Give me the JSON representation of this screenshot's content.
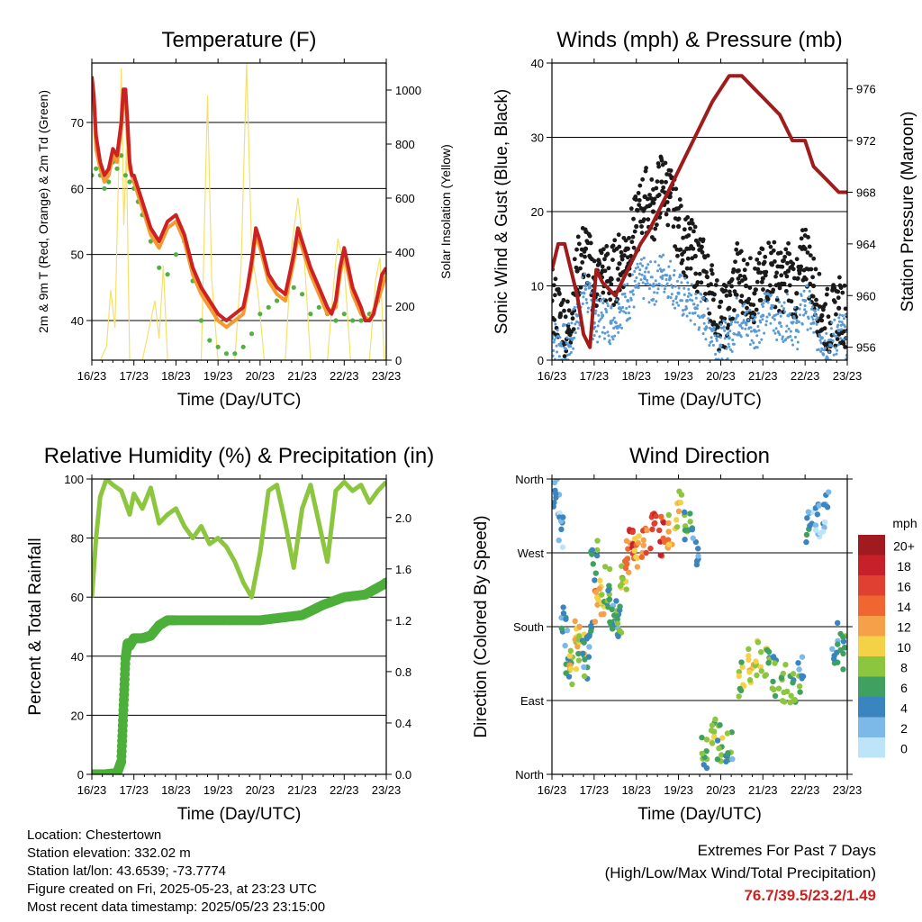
{
  "info": {
    "location": "Location: Chestertown",
    "elevation": "Station elevation: 332.02 m",
    "latlon": "Station lat/lon: 43.6539; -73.7774",
    "created": "Figure created on Fri, 2025-05-23, at 23:23 UTC",
    "recent": "Most recent data timestamp: 2025/05/23 23:15:00"
  },
  "extremes": {
    "title": "Extremes For Past 7 Days",
    "subtitle": "(High/Low/Max Wind/Total Precipitation)",
    "values": "76.7/39.5/23.2/1.49",
    "color": "#cc2222"
  },
  "chart_data": [
    {
      "type": "line",
      "title": "Temperature (F)",
      "xlabel": "Time (Day/UTC)",
      "ylabel": "2m & 9m T (Red, Orange) & 2m Td (Green)",
      "y2label": "Solar Insolation (Yellow)",
      "x_ticks": [
        "16/23",
        "17/23",
        "18/23",
        "19/23",
        "20/23",
        "21/23",
        "22/23",
        "23/23"
      ],
      "xlim": [
        0,
        7
      ],
      "ylim": [
        34,
        79
      ],
      "y_ticks": [
        40,
        50,
        60,
        70
      ],
      "y2lim": [
        0,
        1100
      ],
      "y2_ticks": [
        0,
        200,
        400,
        600,
        800,
        1000
      ],
      "grid": true,
      "series": [
        {
          "color": "#cc2222",
          "axis": "left",
          "x": [
            0,
            0.05,
            0.1,
            0.2,
            0.3,
            0.4,
            0.5,
            0.6,
            0.7,
            0.75,
            0.8,
            0.85,
            0.9,
            0.95,
            1.0,
            1.2,
            1.4,
            1.6,
            1.8,
            2.0,
            2.2,
            2.4,
            2.6,
            2.8,
            2.9,
            3.0,
            3.2,
            3.4,
            3.6,
            3.7,
            3.8,
            3.9,
            4.0,
            4.2,
            4.4,
            4.6,
            4.7,
            4.8,
            4.9,
            5.0,
            5.2,
            5.4,
            5.6,
            5.7,
            5.8,
            5.9,
            6.0,
            6.2,
            6.4,
            6.5,
            6.6,
            6.7,
            6.8,
            6.9,
            7.0
          ],
          "values": [
            77,
            74,
            68,
            64,
            62,
            63,
            66,
            65,
            70,
            75,
            75,
            70,
            64,
            62,
            62,
            58,
            54,
            52,
            55,
            56,
            53,
            48,
            45,
            43,
            42,
            41,
            40,
            41,
            42,
            45,
            49,
            54,
            52,
            47,
            45,
            44,
            47,
            50,
            54,
            52,
            48,
            45,
            42,
            41,
            43,
            48,
            51,
            45,
            42,
            40,
            40,
            41,
            44,
            47,
            48
          ]
        },
        {
          "color": "#f59a30",
          "axis": "left",
          "x": [
            0,
            0.05,
            0.1,
            0.2,
            0.3,
            0.4,
            0.5,
            0.6,
            0.7,
            0.75,
            0.8,
            0.85,
            0.9,
            1.0,
            1.2,
            1.4,
            1.6,
            1.8,
            2.0,
            2.2,
            2.4,
            2.6,
            2.8,
            3.0,
            3.2,
            3.4,
            3.6,
            3.8,
            3.9,
            4.0,
            4.2,
            4.4,
            4.6,
            4.8,
            4.9,
            5.0,
            5.2,
            5.4,
            5.6,
            5.8,
            5.9,
            6.0,
            6.2,
            6.4,
            6.6,
            6.8,
            7.0
          ],
          "values": [
            76,
            73,
            66,
            63,
            61,
            62,
            65,
            64,
            69,
            74,
            74,
            68,
            63,
            61,
            57,
            53,
            51,
            54,
            55,
            52,
            47,
            44,
            42,
            40,
            39,
            40,
            41,
            48,
            53,
            51,
            46,
            44,
            43,
            49,
            53,
            51,
            47,
            44,
            41,
            42,
            47,
            50,
            44,
            41,
            40,
            43,
            47
          ]
        },
        {
          "color": "#52b043",
          "axis": "left",
          "x": [
            0,
            0.1,
            0.2,
            0.3,
            0.4,
            0.5,
            0.6,
            0.7,
            0.8,
            0.9,
            1.0,
            1.1,
            1.2,
            1.4,
            1.6,
            1.8,
            2.0,
            2.2,
            2.4,
            2.6,
            2.8,
            3.0,
            3.2,
            3.4,
            3.6,
            3.8,
            4.0,
            4.2,
            4.4,
            4.6,
            4.8,
            5.0,
            5.2,
            5.4,
            5.6,
            5.8,
            6.0,
            6.2,
            6.4,
            6.6,
            6.8,
            7.0
          ],
          "values": [
            62,
            63,
            62,
            60,
            61,
            64,
            63,
            65,
            62,
            61,
            60,
            58,
            56,
            52,
            48,
            47,
            50,
            52,
            46,
            40,
            37,
            36,
            35,
            35,
            36,
            38,
            41,
            42,
            43,
            44,
            45,
            44,
            41,
            42,
            41,
            40,
            41,
            40,
            40,
            41,
            43,
            47
          ]
        },
        {
          "color": "#f5e06a",
          "axis": "right",
          "x": [
            0.2,
            0.35,
            0.45,
            0.55,
            0.62,
            0.7,
            0.76,
            0.82,
            0.9,
            1.2,
            1.5,
            1.6,
            1.7,
            1.8,
            2.2,
            2.6,
            2.75,
            2.85,
            3.0,
            3.4,
            3.55,
            3.68,
            3.8,
            3.95,
            4.1,
            4.6,
            4.75,
            4.9,
            5.05,
            5.2,
            5.6,
            5.75,
            5.85,
            6.0,
            6.15,
            6.6,
            6.75,
            6.85,
            6.95
          ],
          "values": [
            0,
            50,
            260,
            120,
            600,
            1080,
            500,
            780,
            0,
            0,
            220,
            80,
            350,
            0,
            0,
            0,
            980,
            300,
            0,
            0,
            350,
            1100,
            400,
            250,
            0,
            0,
            420,
            600,
            380,
            0,
            0,
            280,
            450,
            350,
            0,
            0,
            300,
            380,
            0
          ]
        }
      ]
    },
    {
      "type": "scatter",
      "title": "Winds (mph) & Pressure (mb)",
      "xlabel": "Time (Day/UTC)",
      "ylabel": "Sonic Wind & Gust (Blue, Black)",
      "y2label": "Station Pressure (Maroon)",
      "x_ticks": [
        "16/23",
        "17/23",
        "18/23",
        "19/23",
        "20/23",
        "21/23",
        "22/23",
        "23/23"
      ],
      "xlim": [
        0,
        7
      ],
      "ylim": [
        0,
        40
      ],
      "y_ticks": [
        0,
        10,
        20,
        30,
        40
      ],
      "y2lim": [
        955,
        978
      ],
      "y2_ticks": [
        956,
        960,
        964,
        968,
        972,
        976
      ],
      "grid": true,
      "series": [
        {
          "color": "#1a1a1a",
          "marker": "dot",
          "x": [
            0,
            0.2,
            0.4,
            0.6,
            0.8,
            1.0,
            1.2,
            1.4,
            1.6,
            1.8,
            2.0,
            2.2,
            2.4,
            2.6,
            2.8,
            3.0,
            3.2,
            3.4,
            3.6,
            3.8,
            4.0,
            4.2,
            4.4,
            4.6,
            4.8,
            5.0,
            5.2,
            5.4,
            5.6,
            5.8,
            6.0,
            6.2,
            6.4,
            6.6,
            6.8,
            7.0
          ],
          "values": [
            8,
            6,
            4,
            12,
            15,
            10,
            12,
            11,
            13,
            15,
            18,
            22,
            20,
            24,
            22,
            18,
            15,
            14,
            12,
            9,
            5,
            7,
            12,
            10,
            9,
            11,
            13,
            10,
            12,
            9,
            15,
            10,
            6,
            5,
            7,
            6
          ]
        },
        {
          "color": "#5b9bd5",
          "marker": "dot",
          "x": [
            0,
            0.2,
            0.4,
            0.6,
            0.8,
            1.0,
            1.2,
            1.4,
            1.6,
            1.8,
            2.0,
            2.2,
            2.4,
            2.6,
            2.8,
            3.0,
            3.2,
            3.4,
            3.6,
            3.8,
            4.0,
            4.2,
            4.4,
            4.6,
            4.8,
            5.0,
            5.2,
            5.4,
            5.6,
            5.8,
            6.0,
            6.2,
            6.4,
            6.6,
            6.8,
            7.0
          ],
          "values": [
            3,
            2,
            2,
            6,
            10,
            5,
            6,
            5,
            7,
            8,
            10,
            11,
            10,
            12,
            11,
            9,
            8,
            7,
            6,
            4,
            2,
            3,
            6,
            5,
            4,
            6,
            7,
            5,
            6,
            4,
            8,
            5,
            3,
            2,
            4,
            3
          ]
        },
        {
          "color": "#a01c1c",
          "marker": "line",
          "axis": "right",
          "x": [
            0,
            0.15,
            0.3,
            0.45,
            0.6,
            0.75,
            0.9,
            1.05,
            1.2,
            1.5,
            1.8,
            2.1,
            2.3,
            2.6,
            2.9,
            3.2,
            3.5,
            3.8,
            4.0,
            4.2,
            4.5,
            4.8,
            5.1,
            5.4,
            5.7,
            6.0,
            6.2,
            6.5,
            6.8,
            7.0
          ],
          "values": [
            962,
            964,
            964,
            962,
            960,
            957,
            956,
            962,
            961,
            960,
            962,
            964,
            965,
            967,
            969,
            971,
            973,
            975,
            976,
            977,
            977,
            976,
            975,
            974,
            972,
            972,
            970,
            969,
            968,
            968
          ]
        }
      ]
    },
    {
      "type": "line",
      "title": "Relative Humidity (%) & Precipitation (in)",
      "xlabel": "Time (Day/UTC)",
      "ylabel": "Percent & Total Rainfall",
      "x_ticks": [
        "16/23",
        "17/23",
        "18/23",
        "19/23",
        "20/23",
        "21/23",
        "22/23",
        "23/23"
      ],
      "xlim": [
        0,
        7
      ],
      "ylim": [
        0,
        100
      ],
      "y_ticks": [
        0,
        20,
        40,
        60,
        80,
        100
      ],
      "y2lim": [
        0,
        2.3
      ],
      "y2_ticks": [
        "0.0",
        "0.4",
        "0.8",
        "1.2",
        "1.6",
        "2.0"
      ],
      "grid": true,
      "series": [
        {
          "color": "#8cc63f",
          "axis": "left",
          "x": [
            0,
            0.1,
            0.2,
            0.35,
            0.5,
            0.7,
            0.8,
            0.9,
            1.0,
            1.2,
            1.4,
            1.6,
            1.8,
            2.0,
            2.2,
            2.4,
            2.6,
            2.8,
            3.0,
            3.2,
            3.4,
            3.6,
            3.8,
            4.0,
            4.2,
            4.4,
            4.6,
            4.8,
            5.0,
            5.2,
            5.4,
            5.6,
            5.8,
            6.0,
            6.2,
            6.4,
            6.6,
            6.8,
            7.0
          ],
          "values": [
            60,
            80,
            94,
            100,
            98,
            96,
            92,
            88,
            95,
            90,
            97,
            85,
            88,
            90,
            84,
            80,
            84,
            78,
            80,
            77,
            72,
            65,
            60,
            75,
            96,
            98,
            85,
            70,
            90,
            98,
            85,
            72,
            96,
            99,
            96,
            98,
            92,
            96,
            99
          ]
        },
        {
          "color": "#4caf3a",
          "axis": "right",
          "marker": "dot",
          "x": [
            0,
            0.3,
            0.6,
            0.7,
            0.75,
            0.8,
            0.85,
            0.9,
            1.0,
            1.2,
            1.4,
            1.6,
            1.8,
            2.0,
            2.5,
            3.0,
            3.5,
            4.0,
            4.5,
            5.0,
            5.5,
            6.0,
            6.5,
            7.0
          ],
          "values": [
            0,
            0,
            0.01,
            0.1,
            0.5,
            0.9,
            1.02,
            1.0,
            1.06,
            1.06,
            1.08,
            1.16,
            1.2,
            1.2,
            1.2,
            1.2,
            1.2,
            1.2,
            1.22,
            1.24,
            1.32,
            1.38,
            1.4,
            1.49
          ]
        }
      ]
    },
    {
      "type": "scatter",
      "title": "Wind Direction",
      "xlabel": "Time (Day/UTC)",
      "ylabel": "Direction (Colored By Speed)",
      "x_ticks": [
        "16/23",
        "17/23",
        "18/23",
        "19/23",
        "20/23",
        "21/23",
        "22/23",
        "23/23"
      ],
      "xlim": [
        0,
        7
      ],
      "ylim": [
        0,
        360
      ],
      "y_ticks": [
        "North",
        "East",
        "South",
        "West",
        "North"
      ],
      "grid": true,
      "colorbar": {
        "label": "mph",
        "labels": [
          "20+",
          "18",
          "16",
          "14",
          "12",
          "10",
          "8",
          "6",
          "4",
          "2",
          "0"
        ],
        "colors": [
          "#a11a1f",
          "#c8202a",
          "#e04030",
          "#f06630",
          "#f6a04a",
          "#f4d248",
          "#8cc63f",
          "#3fa060",
          "#3a84c0",
          "#7db9e8",
          "#bde4f8"
        ]
      },
      "series": [
        {
          "name": "direction",
          "marker": "dot",
          "x": [
            0.1,
            0.2,
            0.3,
            0.4,
            0.5,
            0.6,
            0.7,
            0.8,
            0.9,
            1.0,
            1.1,
            1.2,
            1.3,
            1.4,
            1.5,
            1.6,
            1.7,
            1.8,
            1.9,
            2.0,
            2.2,
            2.4,
            2.6,
            2.8,
            3.0,
            3.2,
            3.4,
            3.6,
            3.8,
            4.0,
            4.2,
            4.5,
            4.7,
            4.9,
            5.1,
            5.3,
            5.5,
            5.7,
            5.9,
            6.1,
            6.3,
            6.5,
            6.7,
            6.9
          ],
          "values": [
            340,
            300,
            180,
            130,
            150,
            170,
            160,
            140,
            180,
            260,
            210,
            220,
            230,
            200,
            180,
            190,
            230,
            260,
            280,
            270,
            280,
            300,
            290,
            300,
            320,
            300,
            280,
            30,
            50,
            40,
            30,
            120,
            130,
            140,
            130,
            120,
            110,
            100,
            120,
            300,
            310,
            320,
            160,
            150
          ],
          "speeds": [
            3,
            2,
            4,
            6,
            9,
            11,
            8,
            5,
            4,
            6,
            12,
            9,
            7,
            5,
            4,
            6,
            8,
            14,
            16,
            12,
            13,
            17,
            15,
            11,
            10,
            7,
            4,
            6,
            8,
            7,
            5,
            8,
            10,
            9,
            7,
            6,
            8,
            7,
            5,
            3,
            2,
            3,
            4,
            5
          ]
        }
      ]
    }
  ]
}
